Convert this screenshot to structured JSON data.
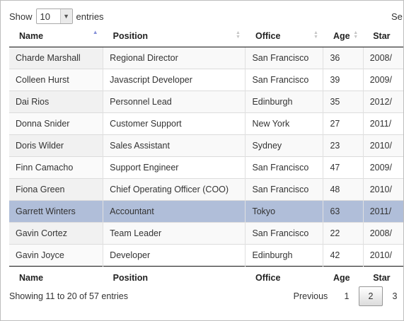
{
  "length_control": {
    "show_label": "Show",
    "selected": "10",
    "entries_label": "entries"
  },
  "search": {
    "label_visible": "Se"
  },
  "table": {
    "columns": [
      "Name",
      "Position",
      "Office",
      "Age",
      "Star"
    ],
    "rows": [
      [
        "Charde Marshall",
        "Regional Director",
        "San Francisco",
        "36",
        "2008/"
      ],
      [
        "Colleen Hurst",
        "Javascript Developer",
        "San Francisco",
        "39",
        "2009/"
      ],
      [
        "Dai Rios",
        "Personnel Lead",
        "Edinburgh",
        "35",
        "2012/"
      ],
      [
        "Donna Snider",
        "Customer Support",
        "New York",
        "27",
        "2011/"
      ],
      [
        "Doris Wilder",
        "Sales Assistant",
        "Sydney",
        "23",
        "2010/"
      ],
      [
        "Finn Camacho",
        "Support Engineer",
        "San Francisco",
        "47",
        "2009/"
      ],
      [
        "Fiona Green",
        "Chief Operating Officer (COO)",
        "San Francisco",
        "48",
        "2010/"
      ],
      [
        "Garrett Winters",
        "Accountant",
        "Tokyo",
        "63",
        "2011/"
      ],
      [
        "Gavin Cortez",
        "Team Leader",
        "San Francisco",
        "22",
        "2008/"
      ],
      [
        "Gavin Joyce",
        "Developer",
        "Edinburgh",
        "42",
        "2010/"
      ]
    ],
    "selected_row_index": 7,
    "sorted_column": "Name",
    "sort_direction": "ascending"
  },
  "info": "Showing 11 to 20 of 57 entries",
  "pagination": {
    "previous": "Previous",
    "pages": [
      "1",
      "2",
      "3"
    ],
    "current": "2"
  },
  "colors": {
    "selected_row": "#b0bed9",
    "sort_active": "#8590d8",
    "border_dark": "#111111"
  }
}
